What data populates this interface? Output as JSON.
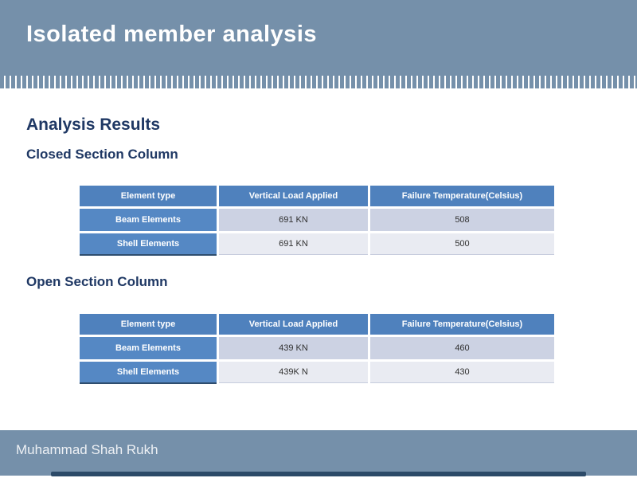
{
  "slide": {
    "title": "Isolated member analysis",
    "footer": "Muhammad Shah Rukh"
  },
  "content": {
    "heading": "Analysis Results",
    "sections": [
      {
        "subheading": "Closed Section Column",
        "table": {
          "columns": [
            "Element type",
            "Vertical Load Applied",
            "Failure Temperature(Celsius)"
          ],
          "rows": [
            [
              "Beam Elements",
              "691 KN",
              "508"
            ],
            [
              "Shell Elements",
              "691 KN",
              "500"
            ]
          ]
        }
      },
      {
        "subheading": "Open Section Column",
        "table": {
          "columns": [
            "Element type",
            "Vertical Load Applied",
            "Failure Temperature(Celsius)"
          ],
          "rows": [
            [
              "Beam Elements",
              "439 KN",
              "460"
            ],
            [
              "Shell Elements",
              "439K N",
              "430"
            ]
          ]
        }
      }
    ]
  },
  "colors": {
    "band_blue_gray": "#7590AA",
    "heading_navy": "#1F3864",
    "table_header_blue": "#4F81BD",
    "table_rowhead_blue": "#5588C4",
    "row_band_dark": "#CCD2E3",
    "row_band_light": "#E9EBF2",
    "bottom_accent_navy": "#2C4A68"
  }
}
